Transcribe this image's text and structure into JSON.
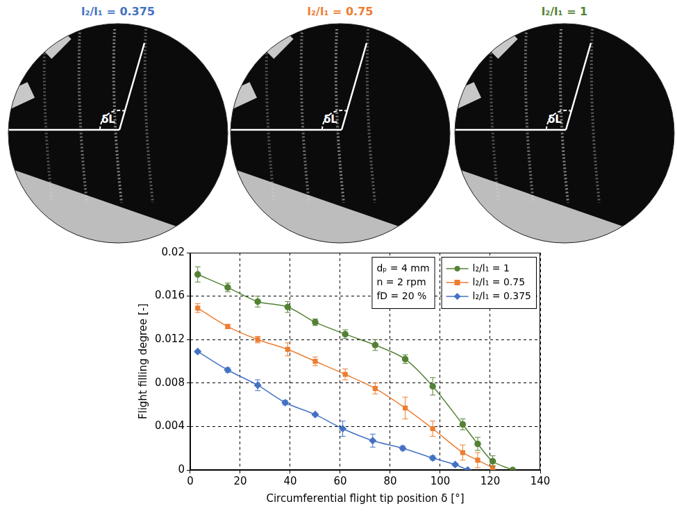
{
  "panels": [
    {
      "title": "l₂/l₁ = 0.375",
      "color": "#4472c4",
      "angle_label": "δL"
    },
    {
      "title": "l₂/l₁ = 0.75",
      "color": "#ed7d31",
      "angle_label": "δL"
    },
    {
      "title": "l₂/l₁ = 1",
      "color": "#548235",
      "angle_label": "δL"
    }
  ],
  "chart_data": {
    "type": "line",
    "x_label": "Circumferential flight tip position δ [°]",
    "y_label": "Flight filling degree [-]",
    "annotations": [
      "dₚ = 4 mm",
      "n = 2 rpm",
      "fD = 20 %"
    ],
    "xlim": [
      0,
      140
    ],
    "xticks": [
      0,
      20,
      40,
      60,
      80,
      100,
      120,
      140
    ],
    "ylim": [
      0,
      0.02
    ],
    "yticks": [
      0,
      0.004,
      0.008,
      0.012,
      0.016,
      0.02
    ],
    "grid": true,
    "legend": "top-right",
    "series": [
      {
        "name": "l₂/l₁ = 1",
        "color": "#548235",
        "marker": "circle",
        "line_style": "solid",
        "x": [
          3,
          15,
          27,
          39,
          50,
          62,
          74,
          86,
          97,
          109,
          115,
          121,
          129
        ],
        "values": [
          0.018,
          0.0168,
          0.0155,
          0.015,
          0.0136,
          0.0125,
          0.0115,
          0.0102,
          0.0077,
          0.0042,
          0.0024,
          0.0008,
          0
        ],
        "errors": [
          0.0007,
          0.0004,
          0.0005,
          0.0005,
          0.0003,
          0.0004,
          0.0005,
          0.0004,
          0.0008,
          0.0005,
          0.0006,
          0.0005,
          0
        ]
      },
      {
        "name": "l₂/l₁ = 0.75",
        "color": "#ed7d31",
        "marker": "square",
        "line_style": "solid",
        "x": [
          3,
          15,
          27,
          39,
          50,
          62,
          74,
          86,
          97,
          109,
          115,
          121
        ],
        "values": [
          0.0149,
          0.0132,
          0.012,
          0.0111,
          0.01,
          0.0088,
          0.0075,
          0.0057,
          0.0038,
          0.0016,
          0.0009,
          0.0002
        ],
        "errors": [
          0.0004,
          0.0002,
          0.0003,
          0.0006,
          0.0004,
          0.0005,
          0.0005,
          0.001,
          0.0007,
          0.0007,
          0.0007,
          0.0002
        ]
      },
      {
        "name": "l₂/l₁ = 0.375",
        "color": "#4472c4",
        "marker": "diamond",
        "line_style": "solid",
        "x": [
          3,
          15,
          27,
          38,
          50,
          61,
          73,
          85,
          97,
          106,
          111
        ],
        "values": [
          0.0109,
          0.0092,
          0.0078,
          0.0062,
          0.0051,
          0.0038,
          0.0027,
          0.002,
          0.0011,
          0.0005,
          0
        ],
        "errors": [
          0.0001,
          0.0002,
          0.0005,
          0.0002,
          0.0001,
          0.0007,
          0.0006,
          0.0002,
          0.0002,
          0.0001,
          0
        ]
      }
    ]
  }
}
